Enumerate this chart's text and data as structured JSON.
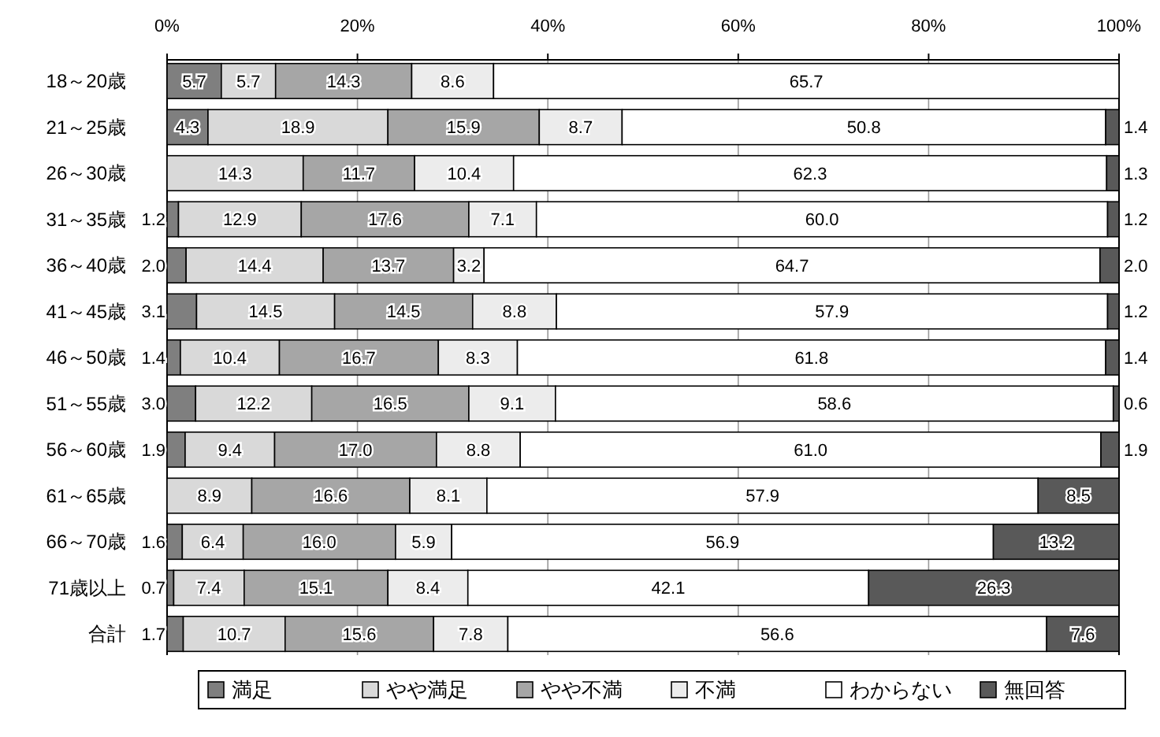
{
  "chart_data": {
    "type": "bar",
    "orientation": "horizontal",
    "stacked": true,
    "legend": "bottom",
    "grid": "x",
    "categories": [
      "18～20歳",
      "21～25歳",
      "26～30歳",
      "31～35歳",
      "36～40歳",
      "41～45歳",
      "46～50歳",
      "51～55歳",
      "56～60歳",
      "61～65歳",
      "66～70歳",
      "71歳以上",
      "合計"
    ],
    "xlim": [
      0,
      100
    ],
    "xticks": [
      {
        "value": 0,
        "label": "0%"
      },
      {
        "value": 20,
        "label": "20%"
      },
      {
        "value": 40,
        "label": "40%"
      },
      {
        "value": 60,
        "label": "60%"
      },
      {
        "value": 80,
        "label": "80%"
      },
      {
        "value": 100,
        "label": "100%"
      }
    ],
    "series": [
      {
        "name": "満足",
        "color": "#7f7f7f",
        "values": [
          5.7,
          4.3,
          0,
          1.2,
          2.0,
          3.1,
          1.4,
          3.0,
          1.9,
          0,
          1.6,
          0.7,
          1.7
        ],
        "value_labels": [
          "5.7",
          "4.3",
          null,
          "1.2",
          "2.0",
          "3.1",
          "1.4",
          "3.0",
          "1.9",
          null,
          "1.6",
          "0.7",
          "1.7"
        ]
      },
      {
        "name": "やや満足",
        "color": "#d9d9d9",
        "values": [
          5.7,
          18.9,
          14.3,
          12.9,
          14.4,
          14.5,
          10.4,
          12.2,
          9.4,
          8.9,
          6.4,
          7.4,
          10.7
        ],
        "value_labels": [
          "5.7",
          "18.9",
          "14.3",
          "12.9",
          "14.4",
          "14.5",
          "10.4",
          "12.2",
          "9.4",
          "8.9",
          "6.4",
          "7.4",
          "10.7"
        ]
      },
      {
        "name": "やや不満",
        "color": "#a6a6a6",
        "values": [
          14.3,
          15.9,
          11.7,
          17.6,
          13.7,
          14.5,
          16.7,
          16.5,
          17.0,
          16.6,
          16.0,
          15.1,
          15.6
        ],
        "value_labels": [
          "14.3",
          "15.9",
          "11.7",
          "17.6",
          "13.7",
          "14.5",
          "16.7",
          "16.5",
          "17.0",
          "16.6",
          "16.0",
          "15.1",
          "15.6"
        ]
      },
      {
        "name": "不満",
        "color": "#ececec",
        "values": [
          8.6,
          8.7,
          10.4,
          7.1,
          3.2,
          8.8,
          8.3,
          9.1,
          8.8,
          8.1,
          5.9,
          8.4,
          7.8
        ],
        "value_labels": [
          "8.6",
          "8.7",
          "10.4",
          "7.1",
          "3.2",
          "8.8",
          "8.3",
          "9.1",
          "8.8",
          "8.1",
          "5.9",
          "8.4",
          "7.8"
        ]
      },
      {
        "name": "わからない",
        "color": "#ffffff",
        "values": [
          65.7,
          50.8,
          62.3,
          60.0,
          64.7,
          57.9,
          61.8,
          58.6,
          61.0,
          57.9,
          56.9,
          42.1,
          56.6
        ],
        "value_labels": [
          "65.7",
          "50.8",
          "62.3",
          "60.0",
          "64.7",
          "57.9",
          "61.8",
          "58.6",
          "61.0",
          "57.9",
          "56.9",
          "42.1",
          "56.6"
        ]
      },
      {
        "name": "無回答",
        "color": "#595959",
        "values": [
          0,
          1.4,
          1.3,
          1.2,
          2.0,
          1.2,
          1.4,
          0.6,
          1.9,
          8.5,
          13.2,
          26.3,
          7.6
        ],
        "value_labels": [
          null,
          "1.4",
          "1.3",
          "1.2",
          "2.0",
          "1.2",
          "1.4",
          "0.6",
          "1.9",
          "8.5",
          "13.2",
          "26.3",
          "7.6"
        ]
      }
    ]
  }
}
